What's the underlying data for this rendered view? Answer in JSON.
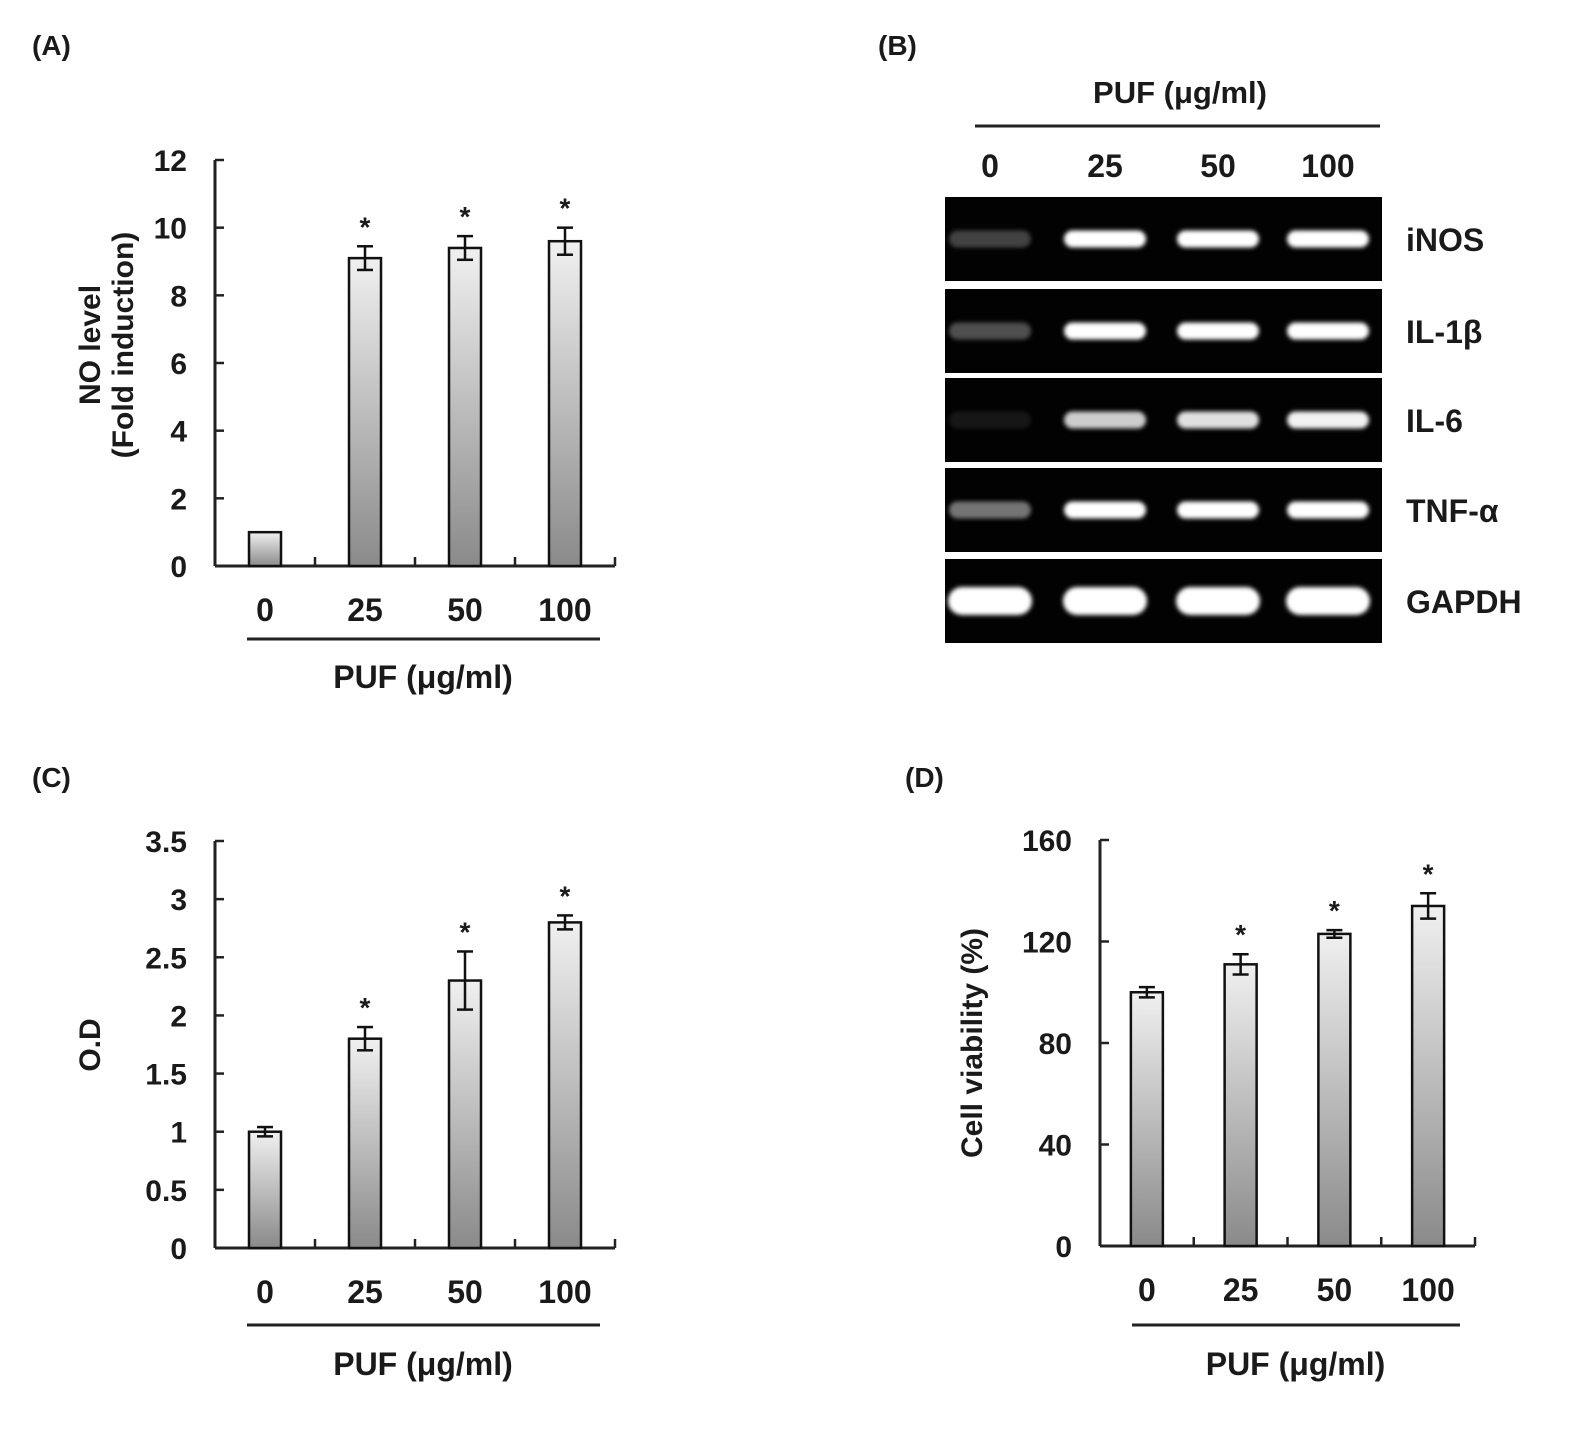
{
  "panels": {
    "a": {
      "label": "(A)"
    },
    "b": {
      "label": "(B)"
    },
    "c": {
      "label": "(C)"
    },
    "d": {
      "label": "(D)"
    }
  },
  "colors": {
    "bar_light": "#f0f0f0",
    "bar_dark": "#8a8a8a",
    "axis": "#222222",
    "gel_background": "#020202",
    "band": "#ffffff"
  },
  "chart_data": [
    {
      "panel": "A",
      "type": "bar",
      "categories": [
        "0",
        "25",
        "50",
        "100"
      ],
      "values": [
        1.0,
        9.1,
        9.4,
        9.6
      ],
      "errors": [
        0.0,
        0.35,
        0.35,
        0.4
      ],
      "significance": [
        "",
        "*",
        "*",
        "*"
      ],
      "ylabel": "NO level",
      "ylabel2": "(Fold induction)",
      "xlabel": "PUF (μg/ml)",
      "ylim": [
        0,
        12
      ],
      "yticks": [
        "0",
        "2",
        "4",
        "6",
        "8",
        "10",
        "12"
      ]
    },
    {
      "panel": "C",
      "type": "bar",
      "categories": [
        "0",
        "25",
        "50",
        "100"
      ],
      "values": [
        1.0,
        1.8,
        2.3,
        2.8
      ],
      "errors": [
        0.04,
        0.1,
        0.25,
        0.06
      ],
      "significance": [
        "",
        "*",
        "*",
        "*"
      ],
      "ylabel": "O.D",
      "xlabel": "PUF (μg/ml)",
      "ylim": [
        0,
        3.5
      ],
      "yticks": [
        "0",
        "0.5",
        "1",
        "1.5",
        "2",
        "2.5",
        "3",
        "3.5"
      ]
    },
    {
      "panel": "D",
      "type": "bar",
      "categories": [
        "0",
        "25",
        "50",
        "100"
      ],
      "values": [
        100,
        111,
        123,
        134
      ],
      "errors": [
        2,
        4,
        1.5,
        5
      ],
      "significance": [
        "",
        "*",
        "*",
        "*"
      ],
      "ylabel": "Cell viability (%)",
      "xlabel": "PUF (μg/ml)",
      "ylim": [
        0,
        160
      ],
      "yticks": [
        "0",
        "40",
        "80",
        "120",
        "160"
      ]
    }
  ],
  "gel": {
    "header": "PUF (μg/ml)",
    "lanes": [
      "0",
      "25",
      "50",
      "100"
    ],
    "rows": [
      {
        "label": "iNOS",
        "intensity": [
          0.25,
          1,
          1,
          1
        ]
      },
      {
        "label": "IL-1β",
        "intensity": [
          0.3,
          1,
          1,
          1
        ]
      },
      {
        "label": "IL-6",
        "intensity": [
          0.08,
          0.8,
          0.88,
          0.95
        ]
      },
      {
        "label": "TNF-α",
        "intensity": [
          0.45,
          1,
          1,
          1
        ]
      },
      {
        "label": "GAPDH",
        "intensity": [
          1,
          1,
          1,
          1
        ]
      }
    ]
  }
}
